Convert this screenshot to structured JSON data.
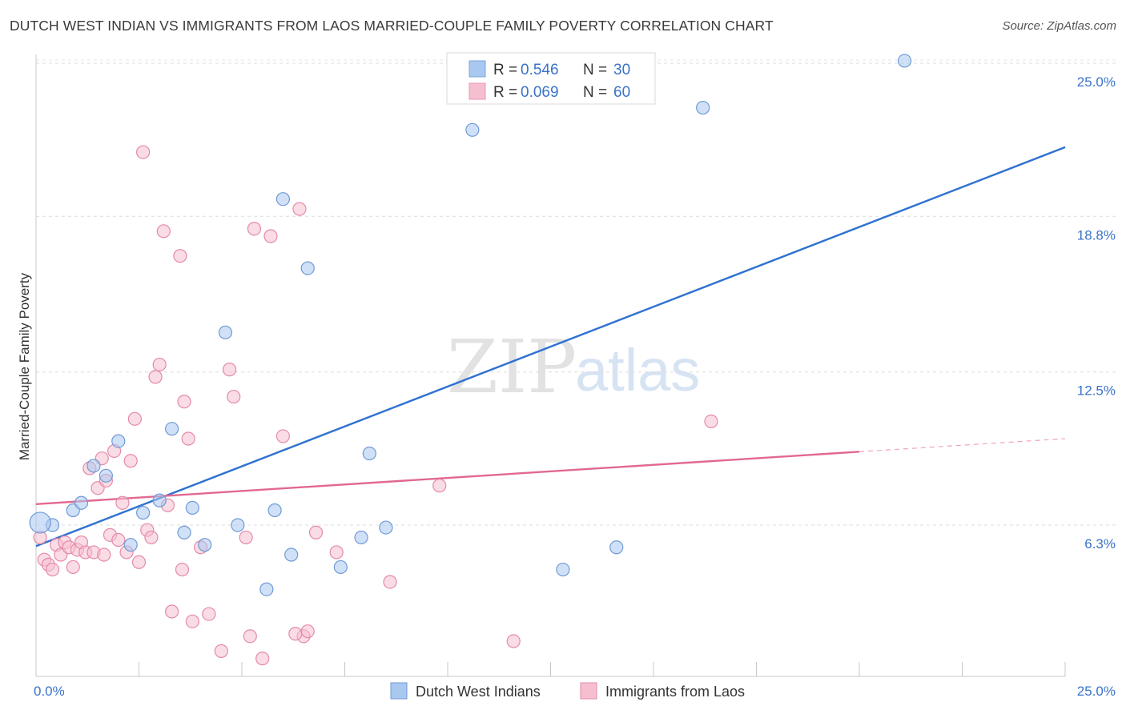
{
  "title": "DUTCH WEST INDIAN VS IMMIGRANTS FROM LAOS MARRIED-COUPLE FAMILY POVERTY CORRELATION CHART",
  "source": "Source: ZipAtlas.com",
  "watermark": {
    "zip": "ZIP",
    "atlas": "atlas"
  },
  "chart_data": {
    "type": "scatter",
    "ylabel": "Married-Couple Family Poverty",
    "xlim": [
      0,
      25
    ],
    "ylim": [
      0,
      25.6
    ],
    "x_tick_labels": [
      {
        "value": 0,
        "label": "0.0%"
      },
      {
        "value": 25,
        "label": "25.0%"
      }
    ],
    "x_minor_ticks": [
      2.5,
      5,
      7.5,
      10,
      12.5,
      15,
      17.5,
      20,
      22.5
    ],
    "y_ticks": [
      {
        "value": 6.3,
        "label": "6.3%"
      },
      {
        "value": 12.5,
        "label": "12.5%"
      },
      {
        "value": 18.8,
        "label": "18.8%"
      },
      {
        "value": 25.0,
        "label": "25.0%"
      }
    ],
    "grid": "horizontal-dashed",
    "legend_top": [
      {
        "r_label": "R = ",
        "r_value": "0.546",
        "n_label": "N = ",
        "n_value": "30",
        "color": "#a9c8f0",
        "stroke": "#7aa6dd"
      },
      {
        "r_label": "R = ",
        "r_value": "0.069",
        "n_label": "N = ",
        "n_value": "60",
        "color": "#f6bfd0",
        "stroke": "#e994b0"
      }
    ],
    "series": [
      {
        "name": "Dutch West Indians",
        "color": "#a9c8f0",
        "stroke": "#6f9ad6",
        "line_color": "#2f72d0",
        "trend": {
          "x": [
            0,
            25
          ],
          "y": [
            5.45,
            21.6
          ],
          "solid_until": 25
        },
        "points": [
          [
            0.4,
            6.3
          ],
          [
            0.9,
            6.9
          ],
          [
            1.1,
            7.2
          ],
          [
            1.4,
            8.7
          ],
          [
            1.7,
            8.3
          ],
          [
            2.0,
            9.7
          ],
          [
            2.3,
            5.5
          ],
          [
            2.6,
            6.8
          ],
          [
            3.0,
            7.3
          ],
          [
            3.3,
            10.2
          ],
          [
            3.6,
            6.0
          ],
          [
            3.8,
            7.0
          ],
          [
            4.1,
            5.5
          ],
          [
            4.6,
            14.1
          ],
          [
            4.9,
            6.3
          ],
          [
            5.6,
            3.7
          ],
          [
            5.8,
            6.9
          ],
          [
            6.0,
            19.5
          ],
          [
            6.2,
            5.1
          ],
          [
            6.6,
            16.7
          ],
          [
            7.4,
            4.6
          ],
          [
            7.9,
            5.8
          ],
          [
            8.1,
            9.2
          ],
          [
            8.5,
            6.2
          ],
          [
            10.6,
            22.3
          ],
          [
            12.8,
            4.5
          ],
          [
            14.1,
            5.4
          ],
          [
            16.2,
            23.2
          ],
          [
            21.1,
            25.1
          ],
          [
            0.1,
            6.4
          ]
        ]
      },
      {
        "name": "Immigrants from Laos",
        "color": "#f6bfd0",
        "stroke": "#e48aa9",
        "line_color": "#e2688f",
        "trend": {
          "x": [
            0,
            25
          ],
          "y": [
            7.15,
            9.8
          ],
          "solid_until": 20
        },
        "points": [
          [
            0.1,
            5.8
          ],
          [
            0.2,
            4.9
          ],
          [
            0.3,
            4.7
          ],
          [
            0.4,
            4.5
          ],
          [
            0.5,
            5.5
          ],
          [
            0.6,
            5.1
          ],
          [
            0.7,
            5.6
          ],
          [
            0.8,
            5.4
          ],
          [
            0.9,
            4.6
          ],
          [
            1.0,
            5.3
          ],
          [
            1.1,
            5.6
          ],
          [
            1.2,
            5.2
          ],
          [
            1.3,
            8.6
          ],
          [
            1.4,
            5.2
          ],
          [
            1.5,
            7.8
          ],
          [
            1.6,
            9.0
          ],
          [
            1.65,
            5.1
          ],
          [
            1.7,
            8.1
          ],
          [
            1.8,
            5.9
          ],
          [
            1.9,
            9.3
          ],
          [
            2.0,
            5.7
          ],
          [
            2.1,
            7.2
          ],
          [
            2.2,
            5.2
          ],
          [
            2.3,
            8.9
          ],
          [
            2.4,
            10.6
          ],
          [
            2.5,
            4.8
          ],
          [
            2.6,
            21.4
          ],
          [
            2.7,
            6.1
          ],
          [
            2.8,
            5.8
          ],
          [
            2.9,
            12.3
          ],
          [
            3.0,
            12.8
          ],
          [
            3.1,
            18.2
          ],
          [
            3.2,
            7.1
          ],
          [
            3.3,
            2.8
          ],
          [
            3.5,
            17.2
          ],
          [
            3.55,
            4.5
          ],
          [
            3.6,
            11.3
          ],
          [
            3.7,
            9.8
          ],
          [
            3.8,
            2.4
          ],
          [
            4.0,
            5.4
          ],
          [
            4.2,
            2.7
          ],
          [
            4.5,
            1.2
          ],
          [
            4.7,
            12.6
          ],
          [
            4.8,
            11.5
          ],
          [
            5.1,
            5.8
          ],
          [
            5.2,
            1.8
          ],
          [
            5.3,
            18.3
          ],
          [
            5.5,
            0.9
          ],
          [
            5.7,
            18.0
          ],
          [
            6.0,
            9.9
          ],
          [
            6.4,
            19.1
          ],
          [
            6.5,
            1.8
          ],
          [
            6.3,
            1.9
          ],
          [
            6.6,
            2.0
          ],
          [
            6.8,
            6.0
          ],
          [
            7.3,
            5.2
          ],
          [
            8.6,
            4.0
          ],
          [
            9.8,
            7.9
          ],
          [
            11.6,
            1.6
          ],
          [
            16.4,
            10.5
          ]
        ]
      }
    ]
  }
}
